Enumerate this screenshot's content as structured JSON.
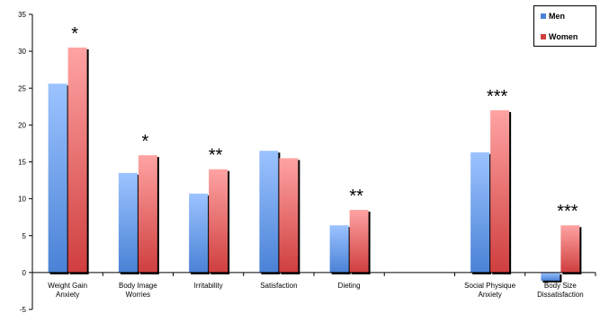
{
  "chart_data": {
    "type": "bar",
    "categories": [
      [
        "Weight Gain",
        "Anxiety"
      ],
      [
        "Body Image",
        "Worries"
      ],
      [
        "Irritability"
      ],
      [
        "Satisfaction"
      ],
      [
        "Dieting"
      ],
      [],
      [
        "Social Physique",
        "Anxiety"
      ],
      [
        "Body Size",
        "Dissatisfaction"
      ]
    ],
    "series": [
      {
        "name": "Men",
        "values": [
          25.6,
          13.5,
          10.7,
          16.5,
          6.4,
          null,
          16.3,
          -1.1
        ]
      },
      {
        "name": "Women",
        "values": [
          30.5,
          15.9,
          14.0,
          15.5,
          8.5,
          null,
          22.0,
          6.4
        ]
      }
    ],
    "significance": [
      "*",
      "*",
      "**",
      "",
      "**",
      "",
      "***",
      "***"
    ],
    "ylim": [
      -5,
      35
    ],
    "yticks": [
      -5,
      0,
      5,
      10,
      15,
      20,
      25,
      30,
      35
    ],
    "legend_position": "top-right",
    "colors": {
      "men_top": "#9cc3ff",
      "men_bottom": "#4a82d6",
      "women_top": "#ffa3a3",
      "women_bottom": "#cf3e3e",
      "shadow": "#000000"
    }
  }
}
